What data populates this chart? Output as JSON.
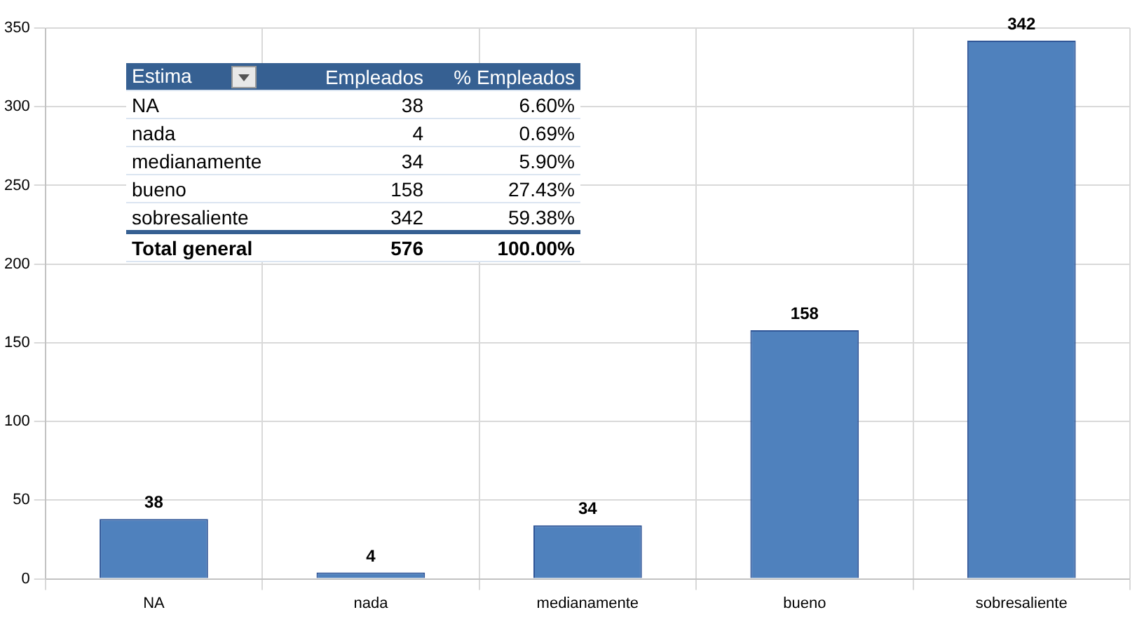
{
  "chart_data": {
    "type": "bar",
    "categories": [
      "NA",
      "nada",
      "medianamente",
      "bueno",
      "sobresaliente"
    ],
    "values": [
      38,
      4,
      34,
      158,
      342
    ],
    "color": "#4f81bd",
    "data_labels": true,
    "ylim": [
      0,
      350
    ],
    "yticks": [
      0,
      50,
      100,
      150,
      200,
      250,
      300,
      350
    ],
    "grid": true,
    "annotations": [
      "Estima",
      "Empleados",
      "% Empleados",
      "38",
      "6.60%",
      "4",
      "0.69%",
      "34",
      "5.90%",
      "158",
      "27.43%",
      "342",
      "59.38%",
      "Total general",
      "576",
      "100.00%"
    ]
  }
}
